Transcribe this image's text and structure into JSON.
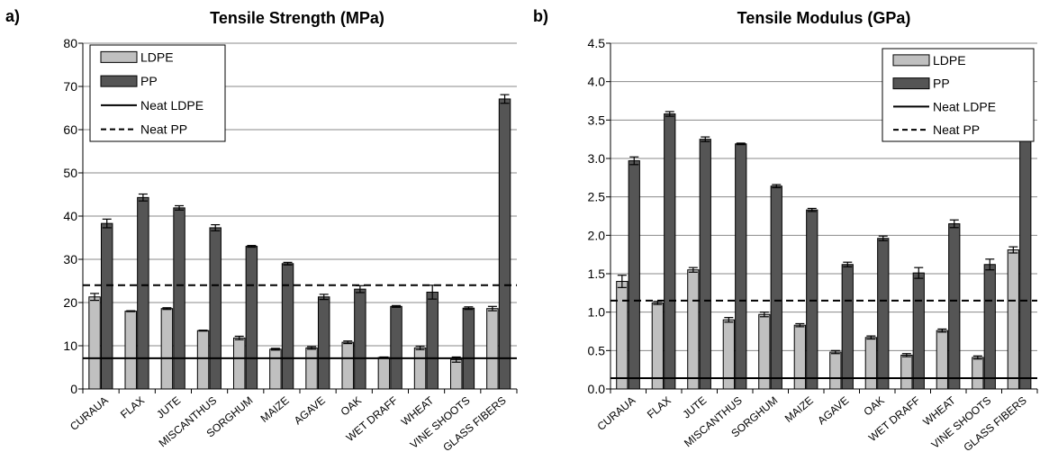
{
  "chart_data": [
    {
      "type": "bar",
      "panel_label": "a)",
      "title": "Tensile Strength (MPa)",
      "categories": [
        "CURAUA",
        "FLAX",
        "JUTE",
        "MISCANTHUS",
        "SORGHUM",
        "MAIZE",
        "AGAVE",
        "OAK",
        "WET DRAFF",
        "WHEAT",
        "VINE SHOOTS",
        "GLASS FIBERS"
      ],
      "series": [
        {
          "name": "LDPE",
          "color": "#c0c0c0",
          "values": [
            21.3,
            18.0,
            18.6,
            13.5,
            11.8,
            9.2,
            9.5,
            10.8,
            7.3,
            9.5,
            6.8,
            18.6
          ],
          "errors": [
            0.8,
            0.1,
            0.2,
            0.1,
            0.4,
            0.2,
            0.3,
            0.3,
            0.1,
            0.4,
            0.6,
            0.5
          ]
        },
        {
          "name": "PP",
          "color": "#555555",
          "values": [
            38.3,
            44.3,
            41.9,
            37.3,
            33.0,
            29.0,
            21.3,
            23.1,
            19.1,
            22.4,
            18.7,
            67.1
          ],
          "errors": [
            1.0,
            0.8,
            0.5,
            0.7,
            0.2,
            0.3,
            0.6,
            0.8,
            0.2,
            1.6,
            0.3,
            1.0
          ]
        }
      ],
      "reference_lines": [
        {
          "name": "Neat LDPE",
          "value": 7.1,
          "style": "solid"
        },
        {
          "name": "Neat PP",
          "value": 24.0,
          "style": "dashed"
        }
      ],
      "ylim": [
        0,
        80
      ],
      "yticks": [
        "0",
        "10",
        "20",
        "30",
        "40",
        "50",
        "60",
        "70",
        "80"
      ],
      "grid": true,
      "legend": "top-left"
    },
    {
      "type": "bar",
      "panel_label": "b)",
      "title": "Tensile Modulus (GPa)",
      "categories": [
        "CURAUA",
        "FLAX",
        "JUTE",
        "MISCANTHUS",
        "SORGHUM",
        "MAIZE",
        "AGAVE",
        "OAK",
        "WET DRAFF",
        "WHEAT",
        "VINE SHOOTS",
        "GLASS FIBERS"
      ],
      "series": [
        {
          "name": "LDPE",
          "color": "#c0c0c0",
          "values": [
            1.4,
            1.12,
            1.55,
            0.9,
            0.97,
            0.83,
            0.48,
            0.67,
            0.44,
            0.76,
            0.41,
            1.81
          ],
          "errors": [
            0.08,
            0.02,
            0.03,
            0.03,
            0.03,
            0.02,
            0.02,
            0.02,
            0.02,
            0.02,
            0.02,
            0.04
          ]
        },
        {
          "name": "PP",
          "color": "#555555",
          "values": [
            2.97,
            3.58,
            3.25,
            3.19,
            2.64,
            2.33,
            1.62,
            1.96,
            1.51,
            2.15,
            1.62,
            4.21
          ],
          "errors": [
            0.05,
            0.03,
            0.03,
            0.01,
            0.02,
            0.02,
            0.03,
            0.03,
            0.07,
            0.05,
            0.07,
            0.04
          ]
        }
      ],
      "reference_lines": [
        {
          "name": "Neat LDPE",
          "value": 0.14,
          "style": "solid"
        },
        {
          "name": "Neat PP",
          "value": 1.15,
          "style": "dashed"
        }
      ],
      "ylim": [
        0,
        4.5
      ],
      "yticks": [
        "0.0",
        "0.5",
        "1.0",
        "1.5",
        "2.0",
        "2.5",
        "3.0",
        "3.5",
        "4.0",
        "4.5"
      ],
      "grid": true,
      "legend": "top-right"
    }
  ]
}
